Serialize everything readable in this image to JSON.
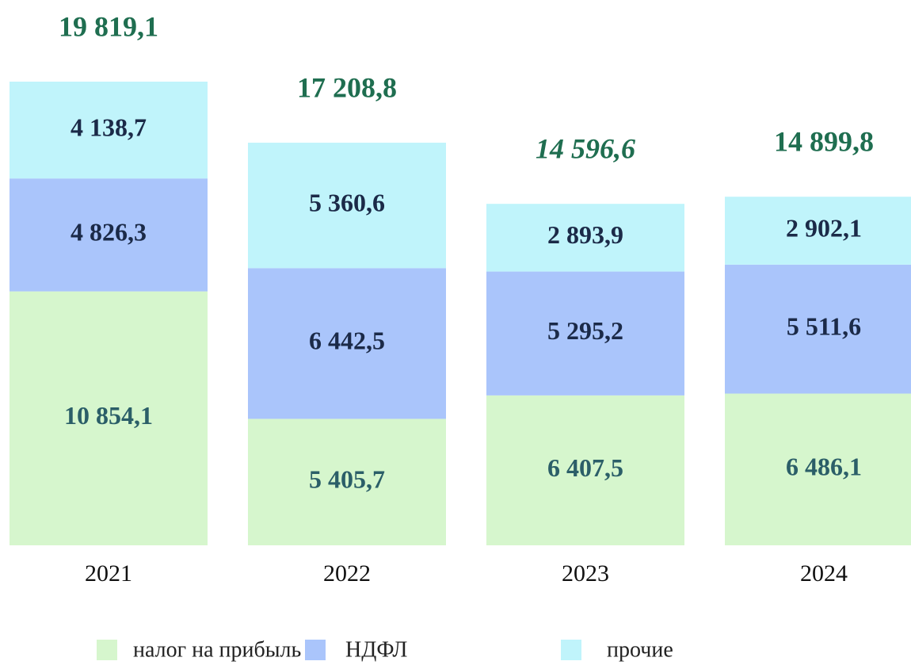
{
  "chart_data": {
    "type": "stacked_bar",
    "categories": [
      "2021",
      "2022",
      "2023",
      "2024"
    ],
    "series": [
      {
        "name": "налог на прибыль",
        "color": "#d6f6cd",
        "label_color": "#2b5e68",
        "values": [
          10854.1,
          5405.7,
          6407.5,
          6486.1
        ],
        "value_labels": [
          "10 854,1",
          "5 405,7",
          "6 407,5",
          "6 486,1"
        ]
      },
      {
        "name": "НДФЛ",
        "color": "#aac5fb",
        "label_color": "#1b2a48",
        "values": [
          4826.3,
          6442.5,
          5295.2,
          5511.6
        ],
        "value_labels": [
          "4 826,3",
          "6 442,5",
          "5 295,2",
          "5 511,6"
        ]
      },
      {
        "name": "прочие",
        "color": "#c0f4fb",
        "label_color": "#1b2a48",
        "values": [
          4138.7,
          5360.6,
          2893.9,
          2902.1
        ],
        "value_labels": [
          "4 138,7",
          "5 360,6",
          "2 893,9",
          "2 902,1"
        ]
      }
    ],
    "totals": {
      "values": [
        19819.1,
        17208.8,
        14596.6,
        14899.8
      ],
      "value_labels": [
        "19 819,1",
        "17 208,8",
        "14 596,6",
        "14 899,8"
      ],
      "italic": [
        false,
        false,
        true,
        false
      ]
    }
  }
}
